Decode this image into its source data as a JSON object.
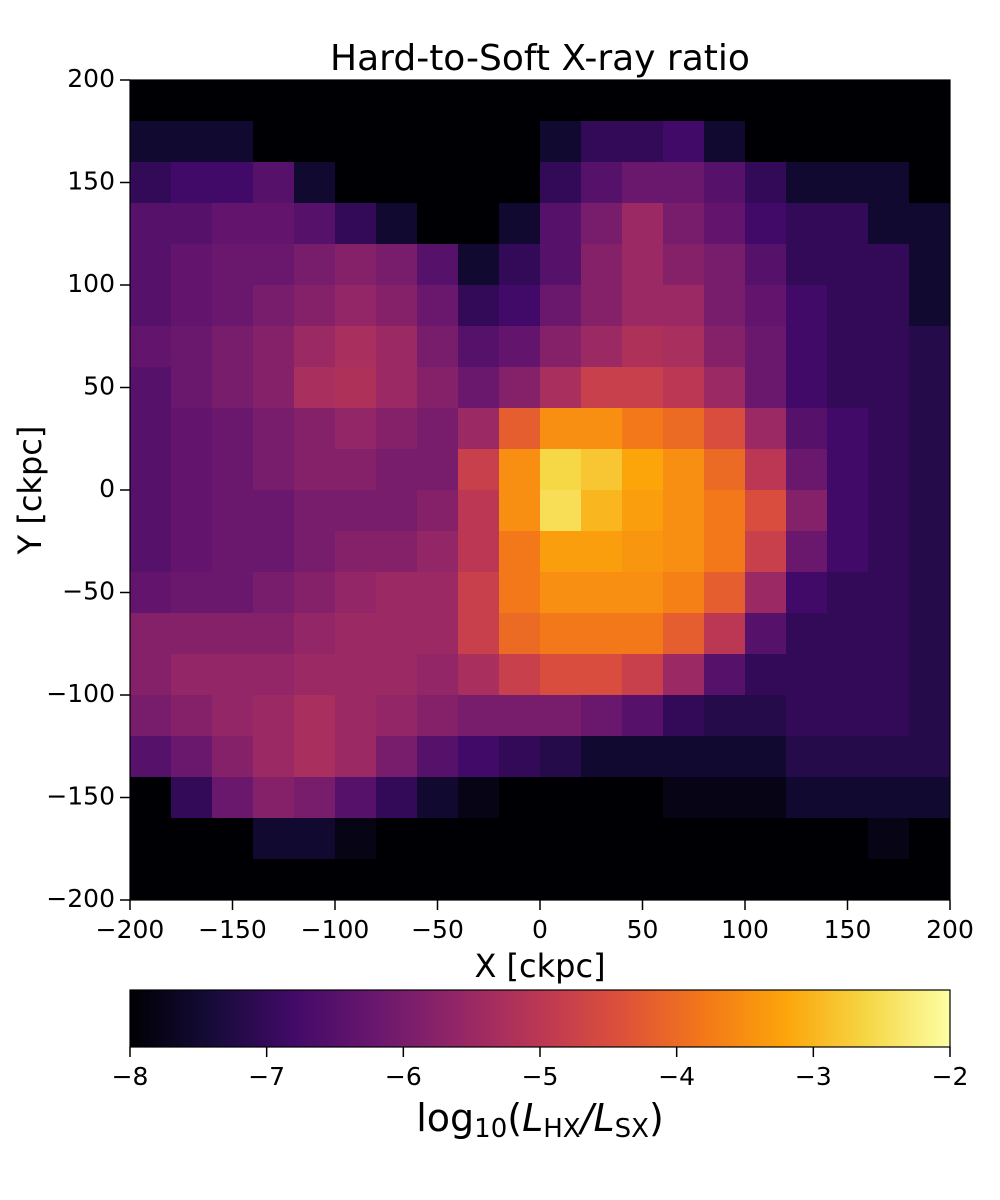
{
  "chart_data": {
    "type": "heatmap",
    "title": "Hard-to-Soft X-ray ratio",
    "xlabel": "X [ckpc]",
    "ylabel": "Y [ckpc]",
    "xlim": [
      -200,
      200
    ],
    "ylim": [
      -200,
      200
    ],
    "xticks": [
      {
        "value": -200,
        "label": "−200"
      },
      {
        "value": -150,
        "label": "−150"
      },
      {
        "value": -100,
        "label": "−100"
      },
      {
        "value": -50,
        "label": "−50"
      },
      0,
      50,
      100,
      150,
      200
    ],
    "yticks": [
      {
        "value": -200,
        "label": "−200"
      },
      {
        "value": -150,
        "label": "−150"
      },
      {
        "value": -100,
        "label": "−100"
      },
      {
        "value": -50,
        "label": "−50"
      },
      0,
      50,
      100,
      150,
      200
    ],
    "colormap": [
      "#000004",
      "#160b39",
      "#420a68",
      "#6a176e",
      "#932667",
      "#bc3754",
      "#dd513a",
      "#f37819",
      "#fca50a",
      "#f6d746",
      "#fcffa4"
    ],
    "clim": [
      -8,
      -2
    ],
    "colorbar_ticks": [
      {
        "value": -8,
        "label": "−8"
      },
      {
        "value": -7,
        "label": "−7"
      },
      {
        "value": -6,
        "label": "−6"
      },
      {
        "value": -5,
        "label": "−5"
      },
      {
        "value": -4,
        "label": "−4"
      },
      {
        "value": -3,
        "label": "−3"
      },
      {
        "value": -2,
        "label": "−2"
      }
    ],
    "colorbar_label": [
      "log",
      "10",
      "(",
      "L",
      "HX",
      "/",
      "L",
      "SX",
      ")"
    ],
    "z": [
      [
        -8,
        -8,
        -8,
        -8,
        -8,
        -8,
        -8,
        -8,
        -8,
        -8,
        -8,
        -8,
        -8,
        -8,
        -8,
        -8,
        -8,
        -8,
        -8,
        -8
      ],
      [
        -7.5,
        -7.5,
        -7.5,
        -8,
        -8,
        -8,
        -8,
        -8,
        -8,
        -8,
        -7.5,
        -7,
        -7,
        -6.8,
        -7.5,
        -8,
        -8,
        -8,
        -8,
        -8
      ],
      [
        -7,
        -6.8,
        -6.8,
        -6.5,
        -7.5,
        -8,
        -8,
        -8,
        -8,
        -8,
        -7,
        -6.5,
        -6.2,
        -6.2,
        -6.5,
        -7,
        -7.5,
        -7.5,
        -7.5,
        -8
      ],
      [
        -6.5,
        -6.5,
        -6.3,
        -6.3,
        -6.5,
        -7,
        -7.5,
        -8,
        -8,
        -7.5,
        -6.5,
        -6,
        -5.5,
        -6,
        -6.3,
        -6.8,
        -7,
        -7,
        -7.5,
        -7.5
      ],
      [
        -6.5,
        -6.3,
        -6.2,
        -6.2,
        -6,
        -5.8,
        -6,
        -6.5,
        -7.5,
        -7,
        -6.5,
        -5.8,
        -5.5,
        -5.8,
        -6,
        -6.5,
        -7,
        -7,
        -7,
        -7.5
      ],
      [
        -6.5,
        -6.3,
        -6.2,
        -6,
        -5.8,
        -5.6,
        -5.8,
        -6.2,
        -7,
        -6.8,
        -6.2,
        -5.8,
        -5.5,
        -5.5,
        -6,
        -6.3,
        -6.8,
        -7,
        -7,
        -7.5
      ],
      [
        -6.3,
        -6.2,
        -6,
        -5.8,
        -5.5,
        -5.3,
        -5.5,
        -6,
        -6.5,
        -6.3,
        -5.8,
        -5.5,
        -5.2,
        -5.3,
        -5.8,
        -6.2,
        -6.8,
        -7,
        -7,
        -7.2
      ],
      [
        -6.5,
        -6.2,
        -6,
        -5.8,
        -5.3,
        -5.2,
        -5.5,
        -5.8,
        -6.2,
        -5.8,
        -5.3,
        -4.8,
        -4.8,
        -5,
        -5.5,
        -6.2,
        -6.8,
        -7,
        -7,
        -7.2
      ],
      [
        -6.5,
        -6.3,
        -6.2,
        -6,
        -5.8,
        -5.6,
        -5.8,
        -6,
        -5.5,
        -4.2,
        -3.5,
        -3.5,
        -3.8,
        -4,
        -4.5,
        -5.5,
        -6.5,
        -6.8,
        -7,
        -7.2
      ],
      [
        -6.5,
        -6.3,
        -6.2,
        -6,
        -5.8,
        -5.8,
        -6,
        -6,
        -4.8,
        -3.5,
        -2.6,
        -2.8,
        -3.2,
        -3.5,
        -4,
        -5,
        -6.2,
        -6.8,
        -7,
        -7.2
      ],
      [
        -6.5,
        -6.3,
        -6.2,
        -6.2,
        -6,
        -6,
        -6,
        -5.8,
        -5,
        -3.5,
        -2.5,
        -3,
        -3.3,
        -3.5,
        -3.8,
        -4.5,
        -5.8,
        -6.8,
        -7,
        -7.2
      ],
      [
        -6.5,
        -6.3,
        -6.2,
        -6.2,
        -6,
        -5.8,
        -5.8,
        -5.6,
        -5,
        -3.8,
        -3.3,
        -3.3,
        -3.4,
        -3.5,
        -3.8,
        -4.8,
        -6.2,
        -6.8,
        -7,
        -7.2
      ],
      [
        -6.3,
        -6.2,
        -6.2,
        -6,
        -5.8,
        -5.6,
        -5.5,
        -5.5,
        -4.8,
        -3.8,
        -3.5,
        -3.5,
        -3.5,
        -3.7,
        -4.2,
        -5.5,
        -6.8,
        -7,
        -7,
        -7.2
      ],
      [
        -5.8,
        -5.8,
        -5.8,
        -5.8,
        -5.6,
        -5.5,
        -5.5,
        -5.5,
        -4.8,
        -4,
        -3.8,
        -3.8,
        -3.8,
        -4.2,
        -5,
        -6.5,
        -7,
        -7,
        -7,
        -7.2
      ],
      [
        -5.8,
        -5.6,
        -5.6,
        -5.6,
        -5.5,
        -5.5,
        -5.5,
        -5.6,
        -5.3,
        -4.8,
        -4.5,
        -4.5,
        -4.8,
        -5.5,
        -6.5,
        -7,
        -7,
        -7,
        -7,
        -7.2
      ],
      [
        -6,
        -5.8,
        -5.6,
        -5.5,
        -5.3,
        -5.5,
        -5.6,
        -5.8,
        -6,
        -6,
        -6,
        -6.2,
        -6.5,
        -7,
        -7.2,
        -7.2,
        -7,
        -7,
        -7,
        -7.2
      ],
      [
        -6.5,
        -6.2,
        -5.8,
        -5.5,
        -5.3,
        -5.5,
        -6,
        -6.5,
        -6.8,
        -7,
        -7.2,
        -7.5,
        -7.5,
        -7.5,
        -7.5,
        -7.5,
        -7.2,
        -7.2,
        -7.2,
        -7.2
      ],
      [
        -8,
        -7,
        -6.2,
        -5.8,
        -6,
        -6.5,
        -7,
        -7.5,
        -7.8,
        -8,
        -8,
        -8,
        -8,
        -7.8,
        -7.8,
        -7.8,
        -7.5,
        -7.5,
        -7.5,
        -7.5
      ],
      [
        -8,
        -8,
        -8,
        -7.5,
        -7.5,
        -7.8,
        -8,
        -8,
        -8,
        -8,
        -8,
        -8,
        -8,
        -8,
        -8,
        -8,
        -8,
        -8,
        -7.8,
        -8
      ],
      [
        -8,
        -8,
        -8,
        -8,
        -8,
        -8,
        -8,
        -8,
        -8,
        -8,
        -8,
        -8,
        -8,
        -8,
        -8,
        -8,
        -8,
        -8,
        -8,
        -8
      ]
    ]
  }
}
